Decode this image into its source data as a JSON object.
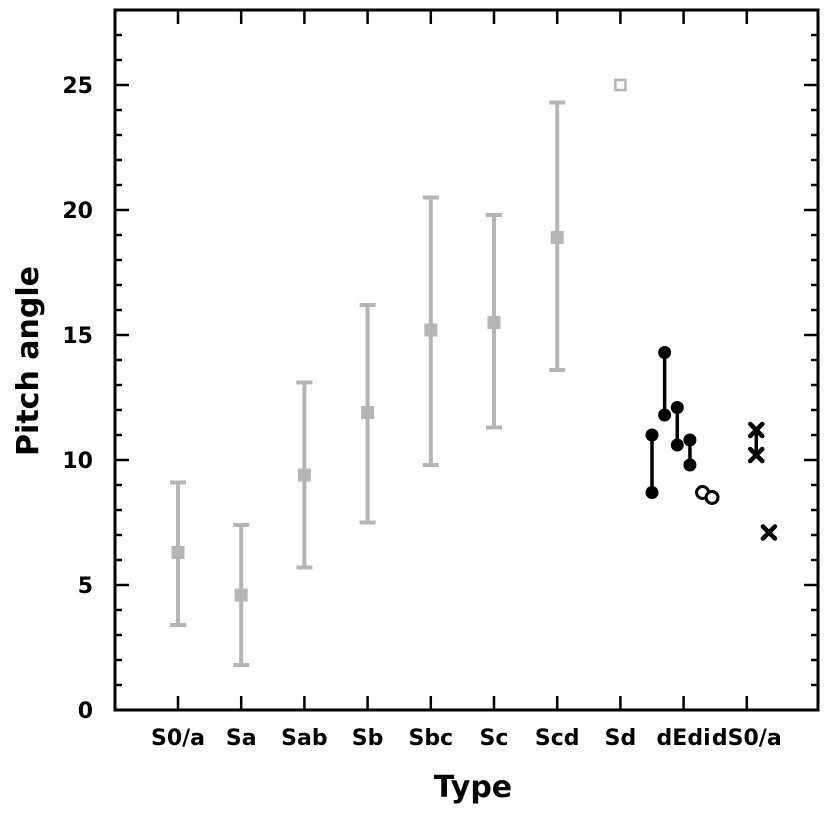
{
  "chart_data": {
    "type": "scatter",
    "title": "",
    "xlabel": "Type",
    "ylabel": "Pitch angle",
    "ylim": [
      0,
      28
    ],
    "yticks": [
      0,
      5,
      10,
      15,
      20,
      25
    ],
    "grid": false,
    "legend": "none",
    "categories": [
      "S0/a",
      "Sa",
      "Sab",
      "Sb",
      "Sbc",
      "Sc",
      "Scd",
      "Sd",
      "dEdi",
      "dS0/a"
    ],
    "colors": {
      "gray": "#b5b5b5",
      "black": "#000000"
    },
    "series": [
      {
        "marker": "filled-square",
        "color": "gray",
        "points": [
          {
            "category": "S0/a",
            "y": 6.3,
            "low": 3.4,
            "high": 9.1
          },
          {
            "category": "Sa",
            "y": 4.6,
            "low": 1.8,
            "high": 7.4
          },
          {
            "category": "Sab",
            "y": 9.4,
            "low": 5.7,
            "high": 13.1
          },
          {
            "category": "Sb",
            "y": 11.9,
            "low": 7.5,
            "high": 16.2
          },
          {
            "category": "Sbc",
            "y": 15.2,
            "low": 9.8,
            "high": 20.5
          },
          {
            "category": "Sc",
            "y": 15.5,
            "low": 11.3,
            "high": 19.8
          },
          {
            "category": "Scd",
            "y": 18.9,
            "low": 13.6,
            "high": 24.3
          }
        ]
      },
      {
        "marker": "open-square",
        "color": "gray",
        "points": [
          {
            "category": "Sd",
            "y": 25.0
          }
        ]
      },
      {
        "marker": "filled-circle",
        "color": "black",
        "connected_pairs": true,
        "points": [
          {
            "category": "dEdi",
            "offset": -0.5,
            "y": 11.0
          },
          {
            "category": "dEdi",
            "offset": -0.5,
            "y": 8.7
          },
          {
            "category": "dEdi",
            "offset": -0.3,
            "y": 14.3
          },
          {
            "category": "dEdi",
            "offset": -0.3,
            "y": 11.8
          },
          {
            "category": "dEdi",
            "offset": -0.1,
            "y": 12.1
          },
          {
            "category": "dEdi",
            "offset": -0.1,
            "y": 10.6
          },
          {
            "category": "dEdi",
            "offset": 0.1,
            "y": 10.8
          },
          {
            "category": "dEdi",
            "offset": 0.1,
            "y": 9.8
          }
        ]
      },
      {
        "marker": "open-circle",
        "color": "black",
        "points": [
          {
            "category": "dEdi",
            "offset": 0.3,
            "y": 8.7
          },
          {
            "category": "dEdi",
            "offset": 0.45,
            "y": 8.5
          }
        ]
      },
      {
        "marker": "cross",
        "color": "black",
        "connected_pairs": true,
        "points": [
          {
            "category": "dS0/a",
            "offset": 0.15,
            "y": 11.2
          },
          {
            "category": "dS0/a",
            "offset": 0.15,
            "y": 10.2
          },
          {
            "category": "dS0/a",
            "offset": 0.35,
            "y": 7.1
          }
        ]
      }
    ]
  }
}
